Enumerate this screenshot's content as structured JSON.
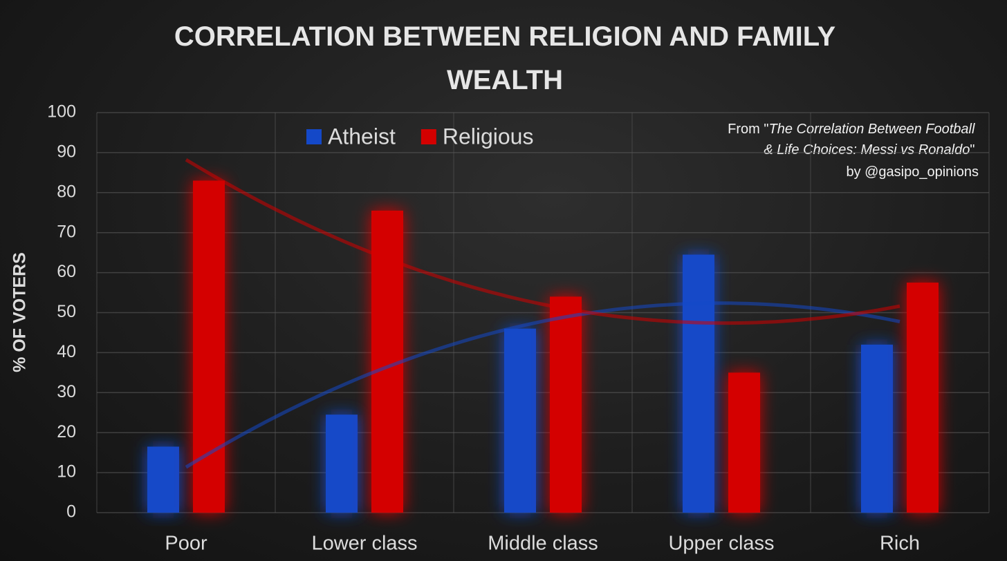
{
  "chart_data": {
    "type": "bar",
    "title": "CORRELATION BETWEEN RELIGION AND  FAMILY WEALTH",
    "y_label": "% OF VOTERS",
    "annotation": [
      [
        "From \"",
        "The Correlation Between Football"
      ],
      [
        "& Life Choices: Messi vs Ronaldo",
        "\""
      ],
      [
        "by @gasipo_opinions"
      ]
    ],
    "categories": [
      "Poor",
      "Lower class",
      "Middle class",
      "Upper class",
      "Rich"
    ],
    "series": [
      {
        "name": "Atheist",
        "color": "#1448c8",
        "values": [
          16.5,
          24.5,
          46,
          64.5,
          42
        ]
      },
      {
        "name": "Religious",
        "color": "#d40000",
        "values": [
          83,
          75.5,
          54,
          35,
          57.5
        ]
      }
    ],
    "trendline": "polynomial",
    "ylim": [
      0,
      100
    ],
    "yticks": [
      0,
      10,
      20,
      30,
      40,
      50,
      60,
      70,
      80,
      90,
      100
    ],
    "grid": true,
    "legend": "top"
  }
}
